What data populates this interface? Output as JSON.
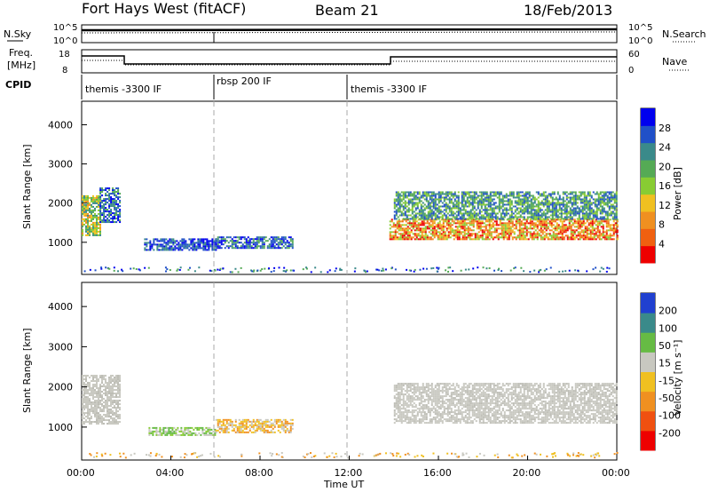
{
  "header": {
    "site": "Fort Hays West (fitACF)",
    "beam": "Beam 21",
    "date": "18/Feb/2013"
  },
  "noise_panel": {
    "left_label": "N.Sky",
    "right_label": "N.Search",
    "left_ticks": [
      "10^5",
      "10^0"
    ],
    "right_ticks": [
      "10^5",
      "10^0"
    ]
  },
  "freq_panel": {
    "left_label_top": "Freq.",
    "left_label_bottom": "[MHz]",
    "right_label": "Nave",
    "left_ticks": [
      "18",
      "8"
    ],
    "right_ticks": [
      "60",
      "0"
    ]
  },
  "cpid_panel": {
    "label": "CPID",
    "segments": [
      {
        "name": "themis -3300 IF",
        "start_hour": 0,
        "end_hour": 6
      },
      {
        "name": "rbsp 200 IF",
        "start_hour": 6,
        "end_hour": 12
      },
      {
        "name": "themis -3300 IF",
        "start_hour": 12,
        "end_hour": 24
      }
    ]
  },
  "axes": {
    "ylabel": "Slant Range [km]",
    "xlabel": "Time UT",
    "y_ticks": [
      "4000",
      "3000",
      "2000",
      "1000"
    ],
    "x_ticks": [
      "00:00",
      "04:00",
      "08:00",
      "12:00",
      "16:00",
      "20:00",
      "00:00"
    ]
  },
  "power_colorbar": {
    "label": "Power [dB]",
    "ticks": [
      "28",
      "24",
      "20",
      "16",
      "12",
      "8",
      "4"
    ],
    "colors": [
      "#0000ee",
      "#2050c8",
      "#3a8a8a",
      "#55aa55",
      "#88cc33",
      "#f0c020",
      "#f09020",
      "#f06010",
      "#ee0000"
    ]
  },
  "velocity_colorbar": {
    "label": "Velocity [m s⁻¹]",
    "ticks": [
      "200",
      "100",
      "50",
      "15",
      "-15",
      "-50",
      "-100",
      "-200"
    ],
    "colors": [
      "#2040d0",
      "#3a8a8a",
      "#66bb44",
      "#c8c8c0",
      "#f0c020",
      "#f09020",
      "#f05010",
      "#ee0000"
    ]
  },
  "chart_data": {
    "type": "heatmap",
    "x_range_hours": [
      0,
      24
    ],
    "y_range_km": [
      180,
      4600
    ],
    "grid": false,
    "dashed_markers_hours": [
      6,
      12
    ],
    "power_regions": [
      {
        "t0": 0.0,
        "t1": 0.8,
        "r0": 1200,
        "r1": 2200,
        "level": "green-orange"
      },
      {
        "t0": 0.8,
        "t1": 1.7,
        "r0": 1500,
        "r1": 2400,
        "level": "blue-green"
      },
      {
        "t0": 2.8,
        "t1": 6.0,
        "r0": 800,
        "r1": 1100,
        "level": "blue"
      },
      {
        "t0": 6.0,
        "t1": 9.5,
        "r0": 850,
        "r1": 1150,
        "level": "blue-green"
      },
      {
        "t0": 13.8,
        "t1": 24.0,
        "r0": 1100,
        "r1": 1600,
        "level": "orange-red"
      },
      {
        "t0": 14.0,
        "t1": 24.0,
        "r0": 1600,
        "r1": 2300,
        "level": "green-blue"
      }
    ],
    "velocity_regions": [
      {
        "t0": 0.0,
        "t1": 1.7,
        "r0": 1100,
        "r1": 2300,
        "level": "gray"
      },
      {
        "t0": 3.0,
        "t1": 6.0,
        "r0": 800,
        "r1": 1000,
        "level": "green"
      },
      {
        "t0": 6.0,
        "t1": 9.5,
        "r0": 850,
        "r1": 1200,
        "level": "orange"
      },
      {
        "t0": 14.0,
        "t1": 24.0,
        "r0": 1100,
        "r1": 2100,
        "level": "gray"
      }
    ]
  }
}
